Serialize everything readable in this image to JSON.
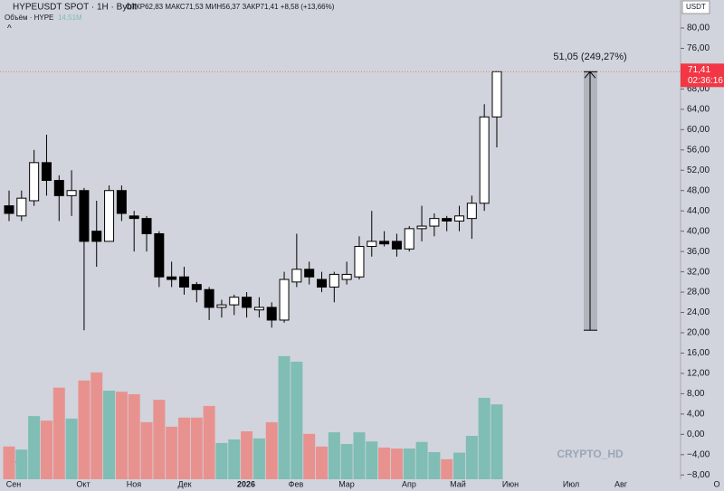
{
  "chart_data": {
    "type": "candlestick",
    "title": "HYPEUSDT SPOT · 1H · Bybit",
    "ohlc_text": "ОТКР62,83 МАКС71,53 МИН56,37 ЗАКР71,41 +8,58 (+13,66%)",
    "volume_label": "Объём · HYPE",
    "volume_value": "14,51M",
    "currency": "USDT",
    "last_price": "71,41",
    "countdown": "02:36:16",
    "measure_label": "51,05 (249,27%)",
    "watermark": "CRYPTO_HD",
    "x_labels": [
      "Сен",
      "Окт",
      "Ноя",
      "Дек",
      "2026",
      "Фев",
      "Мар",
      "Апр",
      "Май",
      "Июн",
      "Июл",
      "Авг",
      "О"
    ],
    "open": [
      45,
      43,
      46,
      53.5,
      50,
      47,
      48,
      40,
      38,
      48,
      43,
      42.5,
      39.5,
      31,
      31,
      29.5,
      28.5,
      25,
      25.5,
      27,
      24.5,
      25,
      22.5,
      30,
      32.5,
      30.5,
      29,
      30.5,
      31,
      37,
      38,
      38,
      36.5,
      40.5,
      41,
      42.5,
      42,
      42.5,
      45.5,
      62.5
    ],
    "close": [
      43.5,
      46.5,
      53.5,
      50,
      47,
      48,
      38,
      38,
      48,
      43.5,
      42.5,
      39.5,
      31,
      30.5,
      29,
      28.5,
      25,
      25.5,
      27,
      25,
      25,
      22.5,
      30.5,
      32.5,
      31,
      29,
      31.5,
      31.5,
      37,
      38,
      37.5,
      36.5,
      40.5,
      41,
      42.5,
      42,
      43,
      45.5,
      62.5,
      71.4
    ],
    "high": [
      48,
      48,
      56,
      59,
      51,
      52,
      48.5,
      46,
      49,
      49,
      44,
      43,
      40,
      34,
      33,
      30,
      29,
      26.5,
      27.5,
      28,
      27,
      26,
      32,
      39.5,
      34,
      32,
      32,
      34,
      39,
      44,
      40,
      39.5,
      41,
      45,
      43.5,
      43,
      45,
      47,
      65,
      71.5
    ],
    "low": [
      42,
      42,
      45,
      47,
      42,
      43,
      20.5,
      33,
      38,
      42,
      36,
      36,
      29,
      29,
      27.5,
      26,
      22.5,
      23,
      23.5,
      23,
      23,
      21,
      22,
      29,
      29.5,
      28,
      26,
      29.5,
      30.5,
      35,
      37,
      35,
      36,
      38,
      39,
      40,
      40,
      38.5,
      44,
      56.5
    ],
    "volume": [
      -2.4,
      -3,
      3.6,
      2.7,
      9.2,
      3.1,
      10.6,
      12.2,
      8.6,
      8.4,
      7.9,
      2.4,
      6.8,
      1.5,
      3.3,
      3.3,
      5.6,
      -1.7,
      -1,
      0.6,
      -0.8,
      2.4,
      15.4,
      14.3,
      0.1,
      -2.4,
      0.4,
      -1.9,
      0.4,
      -1.4,
      -2.6,
      -2.8,
      -2.8,
      -1.5,
      -3.5,
      -4.9,
      -3.6,
      -0.3,
      7.2,
      5.9
    ],
    "up_color": "#7fbdb5",
    "down_color": "#e89290",
    "ylim": [
      -8.84,
      85.52
    ],
    "yticks": [
      {
        "value": 80,
        "label": "80,00"
      },
      {
        "value": 76,
        "label": "76,00"
      },
      {
        "value": 72,
        "label": "72,00"
      },
      {
        "value": 68,
        "label": "68,00"
      },
      {
        "value": 64,
        "label": "64,00"
      },
      {
        "value": 60,
        "label": "60,00"
      },
      {
        "value": 56,
        "label": "56,00"
      },
      {
        "value": 52,
        "label": "52,00"
      },
      {
        "value": 48,
        "label": "48,00"
      },
      {
        "value": 44,
        "label": "44,00"
      },
      {
        "value": 40,
        "label": "40,00"
      },
      {
        "value": 36,
        "label": "36,00"
      },
      {
        "value": 32,
        "label": "32,00"
      },
      {
        "value": 28,
        "label": "28,00"
      },
      {
        "value": 24,
        "label": "24,00"
      },
      {
        "value": 20,
        "label": "20,00"
      },
      {
        "value": 16,
        "label": "16,00"
      },
      {
        "value": 12,
        "label": "12,00"
      },
      {
        "value": 8,
        "label": "8,00"
      },
      {
        "value": 4,
        "label": "4,00"
      },
      {
        "value": 0,
        "label": "0,00"
      },
      {
        "value": -4,
        "label": "−4,00"
      },
      {
        "value": -8,
        "label": "−8,00"
      }
    ]
  }
}
